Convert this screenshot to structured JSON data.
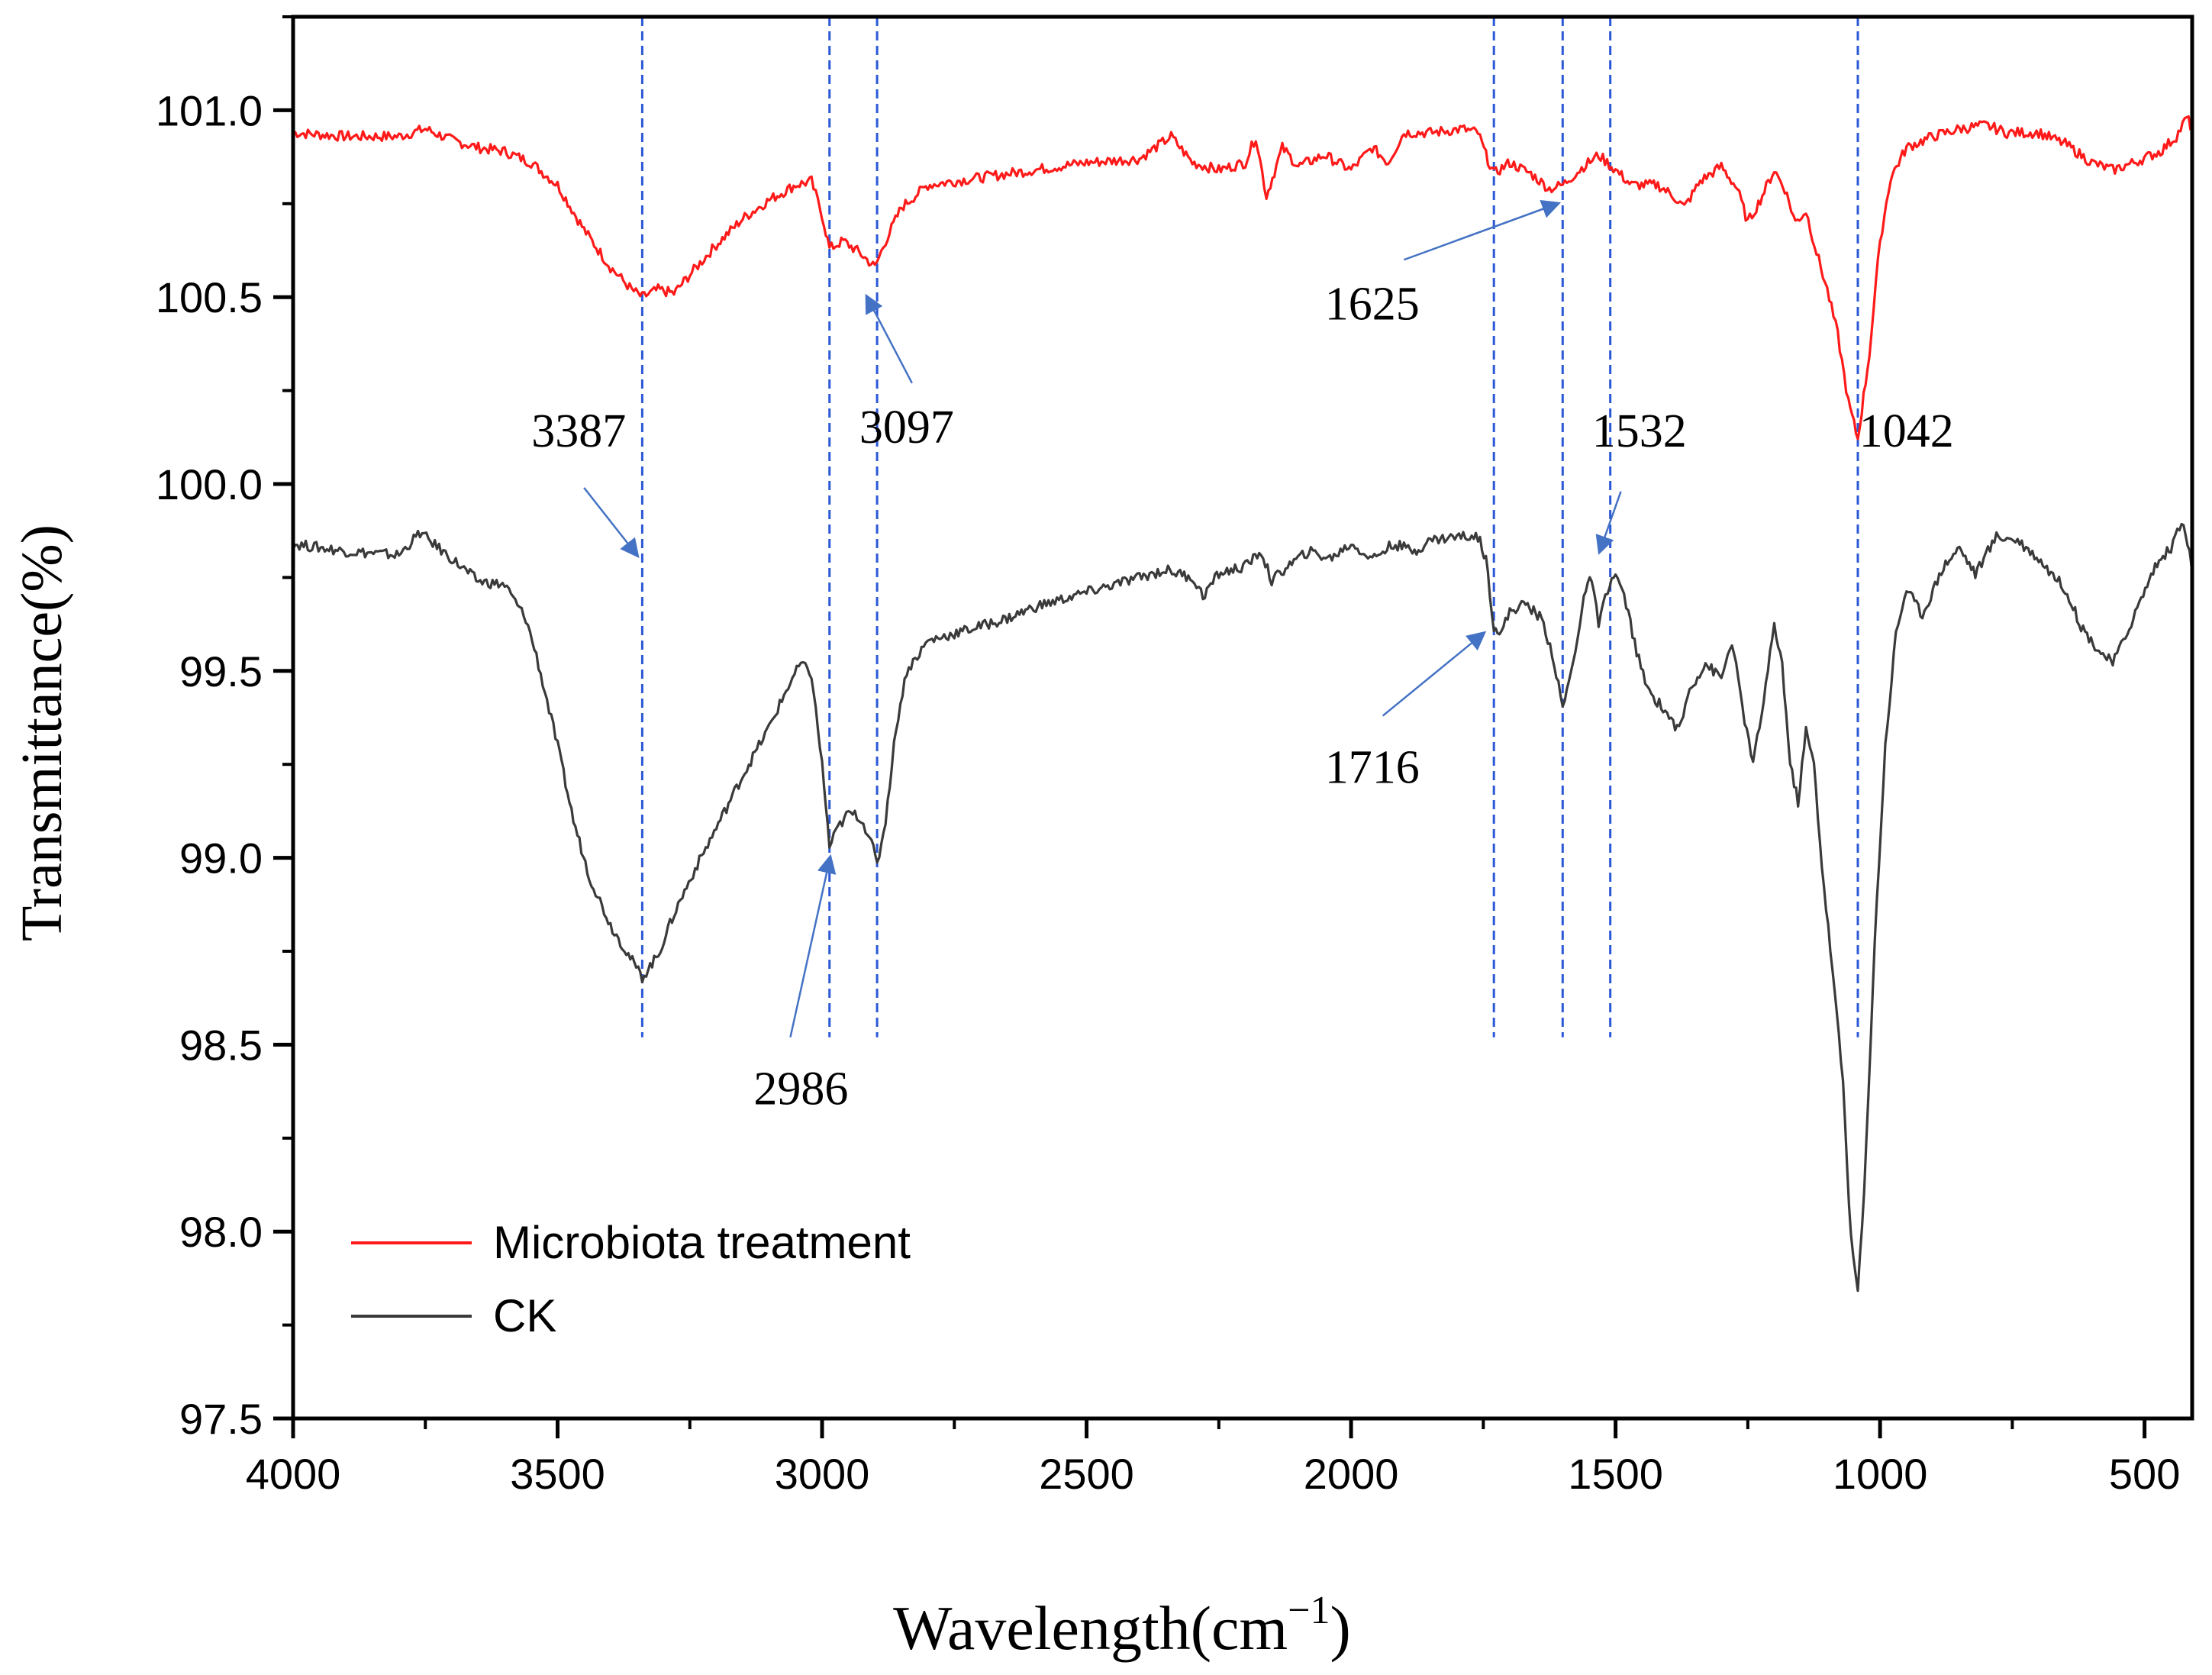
{
  "chart_data": {
    "type": "line",
    "title": "",
    "xlabel": "Wavelength(cm",
    "xlabel_sup": "−1",
    "xlabel_close": ")",
    "ylabel": "Transmittance(%)",
    "xlim": [
      4000,
      410
    ],
    "ylim": [
      97.5,
      101.25
    ],
    "x_ticks": [
      4000,
      3500,
      3000,
      2500,
      2000,
      1500,
      1000,
      500
    ],
    "y_ticks": [
      97.5,
      98.0,
      98.5,
      99.0,
      99.5,
      100.0,
      100.5,
      101.0
    ],
    "y_tick_labels": [
      "97.5",
      "98.0",
      "98.5",
      "99.0",
      "99.5",
      "100.0",
      "100.5",
      "101.0"
    ],
    "grid": false,
    "legend_position": "bottom-left",
    "series": [
      {
        "name": "Microbiota treatment",
        "color": "#ff1a1a",
        "points": [
          [
            4000,
            100.94
          ],
          [
            3900,
            100.93
          ],
          [
            3800,
            100.93
          ],
          [
            3750,
            100.95
          ],
          [
            3700,
            100.92
          ],
          [
            3650,
            100.9
          ],
          [
            3600,
            100.89
          ],
          [
            3550,
            100.86
          ],
          [
            3500,
            100.8
          ],
          [
            3450,
            100.68
          ],
          [
            3400,
            100.58
          ],
          [
            3360,
            100.52
          ],
          [
            3340,
            100.5
          ],
          [
            3310,
            100.52
          ],
          [
            3280,
            100.51
          ],
          [
            3250,
            100.56
          ],
          [
            3200,
            100.64
          ],
          [
            3150,
            100.71
          ],
          [
            3100,
            100.76
          ],
          [
            3050,
            100.8
          ],
          [
            3020,
            100.81
          ],
          [
            3000,
            100.72
          ],
          [
            2986,
            100.63
          ],
          [
            2960,
            100.65
          ],
          [
            2930,
            100.62
          ],
          [
            2900,
            100.58
          ],
          [
            2880,
            100.65
          ],
          [
            2850,
            100.74
          ],
          [
            2800,
            100.8
          ],
          [
            2700,
            100.82
          ],
          [
            2600,
            100.84
          ],
          [
            2500,
            100.86
          ],
          [
            2400,
            100.87
          ],
          [
            2340,
            100.93
          ],
          [
            2300,
            100.86
          ],
          [
            2250,
            100.84
          ],
          [
            2200,
            100.86
          ],
          [
            2180,
            100.93
          ],
          [
            2160,
            100.77
          ],
          [
            2130,
            100.9
          ],
          [
            2100,
            100.85
          ],
          [
            2050,
            100.88
          ],
          [
            2000,
            100.84
          ],
          [
            1960,
            100.9
          ],
          [
            1930,
            100.86
          ],
          [
            1900,
            100.94
          ],
          [
            1850,
            100.94
          ],
          [
            1790,
            100.95
          ],
          [
            1760,
            100.94
          ],
          [
            1745,
            100.88
          ],
          [
            1730,
            100.83
          ],
          [
            1700,
            100.86
          ],
          [
            1660,
            100.83
          ],
          [
            1625,
            100.79
          ],
          [
            1600,
            100.8
          ],
          [
            1560,
            100.85
          ],
          [
            1532,
            100.88
          ],
          [
            1500,
            100.84
          ],
          [
            1470,
            100.8
          ],
          [
            1420,
            100.8
          ],
          [
            1390,
            100.77
          ],
          [
            1370,
            100.74
          ],
          [
            1340,
            100.81
          ],
          [
            1300,
            100.85
          ],
          [
            1270,
            100.79
          ],
          [
            1250,
            100.7
          ],
          [
            1230,
            100.75
          ],
          [
            1200,
            100.84
          ],
          [
            1180,
            100.79
          ],
          [
            1160,
            100.7
          ],
          [
            1140,
            100.73
          ],
          [
            1120,
            100.62
          ],
          [
            1100,
            100.52
          ],
          [
            1080,
            100.4
          ],
          [
            1060,
            100.22
          ],
          [
            1042,
            100.12
          ],
          [
            1020,
            100.35
          ],
          [
            1000,
            100.65
          ],
          [
            980,
            100.82
          ],
          [
            950,
            100.9
          ],
          [
            900,
            100.93
          ],
          [
            850,
            100.95
          ],
          [
            800,
            100.96
          ],
          [
            760,
            100.94
          ],
          [
            700,
            100.94
          ],
          [
            650,
            100.91
          ],
          [
            600,
            100.86
          ],
          [
            560,
            100.84
          ],
          [
            520,
            100.86
          ],
          [
            470,
            100.89
          ],
          [
            440,
            100.93
          ],
          [
            420,
            100.98
          ],
          [
            410,
            100.95
          ]
        ]
      },
      {
        "name": "CK",
        "color": "#3a3a3a",
        "points": [
          [
            4000,
            99.84
          ],
          [
            3900,
            99.82
          ],
          [
            3800,
            99.81
          ],
          [
            3760,
            99.87
          ],
          [
            3700,
            99.8
          ],
          [
            3650,
            99.74
          ],
          [
            3600,
            99.73
          ],
          [
            3560,
            99.64
          ],
          [
            3540,
            99.54
          ],
          [
            3520,
            99.42
          ],
          [
            3500,
            99.3
          ],
          [
            3470,
            99.1
          ],
          [
            3440,
            98.95
          ],
          [
            3400,
            98.82
          ],
          [
            3370,
            98.75
          ],
          [
            3340,
            98.68
          ],
          [
            3310,
            98.74
          ],
          [
            3280,
            98.85
          ],
          [
            3240,
            98.97
          ],
          [
            3200,
            99.08
          ],
          [
            3150,
            99.22
          ],
          [
            3100,
            99.35
          ],
          [
            3060,
            99.47
          ],
          [
            3040,
            99.52
          ],
          [
            3020,
            99.49
          ],
          [
            3000,
            99.25
          ],
          [
            2986,
            99.03
          ],
          [
            2970,
            99.08
          ],
          [
            2950,
            99.12
          ],
          [
            2930,
            99.11
          ],
          [
            2910,
            99.06
          ],
          [
            2896,
            98.98
          ],
          [
            2880,
            99.1
          ],
          [
            2860,
            99.35
          ],
          [
            2840,
            99.5
          ],
          [
            2800,
            99.58
          ],
          [
            2750,
            99.6
          ],
          [
            2700,
            99.62
          ],
          [
            2650,
            99.64
          ],
          [
            2600,
            99.67
          ],
          [
            2500,
            99.71
          ],
          [
            2400,
            99.75
          ],
          [
            2350,
            99.77
          ],
          [
            2300,
            99.75
          ],
          [
            2280,
            99.7
          ],
          [
            2250,
            99.76
          ],
          [
            2200,
            99.78
          ],
          [
            2170,
            99.82
          ],
          [
            2150,
            99.74
          ],
          [
            2120,
            99.78
          ],
          [
            2080,
            99.82
          ],
          [
            2040,
            99.8
          ],
          [
            2000,
            99.84
          ],
          [
            1960,
            99.8
          ],
          [
            1920,
            99.84
          ],
          [
            1880,
            99.82
          ],
          [
            1850,
            99.85
          ],
          [
            1800,
            99.86
          ],
          [
            1760,
            99.86
          ],
          [
            1745,
            99.8
          ],
          [
            1730,
            99.62
          ],
          [
            1716,
            99.6
          ],
          [
            1700,
            99.66
          ],
          [
            1670,
            99.68
          ],
          [
            1640,
            99.64
          ],
          [
            1620,
            99.55
          ],
          [
            1600,
            99.4
          ],
          [
            1580,
            99.52
          ],
          [
            1560,
            99.7
          ],
          [
            1545,
            99.75
          ],
          [
            1532,
            99.62
          ],
          [
            1515,
            99.72
          ],
          [
            1500,
            99.76
          ],
          [
            1480,
            99.68
          ],
          [
            1460,
            99.55
          ],
          [
            1440,
            99.45
          ],
          [
            1410,
            99.4
          ],
          [
            1380,
            99.34
          ],
          [
            1360,
            99.45
          ],
          [
            1330,
            99.52
          ],
          [
            1300,
            99.48
          ],
          [
            1280,
            99.58
          ],
          [
            1260,
            99.4
          ],
          [
            1240,
            99.25
          ],
          [
            1220,
            99.42
          ],
          [
            1200,
            99.62
          ],
          [
            1185,
            99.52
          ],
          [
            1170,
            99.25
          ],
          [
            1155,
            99.15
          ],
          [
            1140,
            99.34
          ],
          [
            1125,
            99.25
          ],
          [
            1110,
            98.98
          ],
          [
            1090,
            98.7
          ],
          [
            1070,
            98.4
          ],
          [
            1055,
            97.98
          ],
          [
            1042,
            97.84
          ],
          [
            1030,
            98.1
          ],
          [
            1010,
            98.78
          ],
          [
            990,
            99.3
          ],
          [
            970,
            99.6
          ],
          [
            950,
            99.72
          ],
          [
            920,
            99.65
          ],
          [
            880,
            99.78
          ],
          [
            850,
            99.83
          ],
          [
            820,
            99.76
          ],
          [
            780,
            99.86
          ],
          [
            740,
            99.85
          ],
          [
            700,
            99.8
          ],
          [
            650,
            99.72
          ],
          [
            620,
            99.62
          ],
          [
            590,
            99.56
          ],
          [
            560,
            99.52
          ],
          [
            540,
            99.58
          ],
          [
            510,
            99.68
          ],
          [
            480,
            99.78
          ],
          [
            450,
            99.83
          ],
          [
            430,
            99.9
          ],
          [
            415,
            99.82
          ],
          [
            410,
            99.76
          ]
        ]
      }
    ],
    "reference_lines_x": [
      3340,
      2986,
      2896,
      1730,
      1600,
      1510,
      1042
    ],
    "annotations": [
      {
        "text": "3387",
        "label_x": 3460,
        "label_y": 100.1,
        "arrow_from": [
          3450,
          99.99
        ],
        "arrow_to": [
          3350,
          99.81
        ]
      },
      {
        "text": "3097",
        "label_x": 2840,
        "label_y": 100.11,
        "arrow_from": [
          2830,
          100.27
        ],
        "arrow_to": [
          2915,
          100.5
        ]
      },
      {
        "text": "2986",
        "label_x": 3040,
        "label_y": 98.34,
        "arrow_from": [
          3060,
          98.52
        ],
        "arrow_to": [
          2985,
          99.0
        ]
      },
      {
        "text": "1625",
        "label_x": 1960,
        "label_y": 100.44,
        "arrow_from": [
          1900,
          100.6
        ],
        "arrow_to": [
          1610,
          100.75
        ]
      },
      {
        "text": "1532",
        "label_x": 1455,
        "label_y": 100.1,
        "arrow_from": [
          1490,
          99.98
        ],
        "arrow_to": [
          1530,
          99.82
        ]
      },
      {
        "text": "1042",
        "label_x": 950,
        "label_y": 100.1,
        "arrow_from": null,
        "arrow_to": null
      },
      {
        "text": "1716",
        "label_x": 1960,
        "label_y": 99.2,
        "arrow_from": [
          1940,
          99.38
        ],
        "arrow_to": [
          1750,
          99.6
        ]
      }
    ],
    "annotation_color": "#4472c4",
    "reference_line_color": "#2b58d6"
  }
}
